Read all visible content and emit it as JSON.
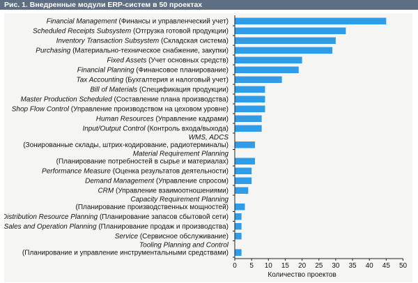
{
  "figure": {
    "title": "Рис. 1. Внедренные модули ERP-систем в 50 проектах"
  },
  "colors": {
    "title_bar": "#5e6e83",
    "bar": "#2f9ce8",
    "plot_background": "#f5f6f3"
  },
  "chart_data": {
    "type": "bar",
    "orientation": "horizontal",
    "title": "Рис. 1. Внедренные модули ERP-систем в 50 проектах",
    "xlabel": "Количество проектов",
    "ylabel": "",
    "xlim": [
      0,
      50
    ],
    "xticks": [
      0,
      5,
      10,
      15,
      20,
      25,
      30,
      35,
      40,
      45,
      50
    ],
    "grid": false,
    "legend": "none",
    "categories": [
      {
        "en": "Financial Management",
        "ru": "(Финансы и управленческий учет)",
        "value": 45
      },
      {
        "en": "Scheduled Receipts Subsystem",
        "ru": "(Отгрузка готовой продукции)",
        "value": 33
      },
      {
        "en": "Inventory Transaction Subsystem",
        "ru": "(Складская система)",
        "value": 30
      },
      {
        "en": "Purchasing",
        "ru": "(Материально-техническое снабжение, закупки)",
        "value": 29
      },
      {
        "en": "Fixed Assets",
        "ru": "(Учет основных средств)",
        "value": 20
      },
      {
        "en": "Financial Planning",
        "ru": "(Финансовое планирование)",
        "value": 19
      },
      {
        "en": "Tax Accounting",
        "ru": "(Бухгалтерия и налоговый учет)",
        "value": 14
      },
      {
        "en": "Bill of Materials",
        "ru": "(Спецификация продукции)",
        "value": 9
      },
      {
        "en": "Master Production Scheduled",
        "ru": "(Составление плана производства)",
        "value": 9
      },
      {
        "en": "Shop Flow Control",
        "ru": "(Управление производством на цеховом уровне)",
        "value": 9
      },
      {
        "en": "Human Resources",
        "ru": "(Управление кадрами)",
        "value": 8
      },
      {
        "en": "Input/Output Control",
        "ru": "(Контроль входа/выхода)",
        "value": 8
      },
      {
        "en": "WMS, ADCS",
        "ru": "(Зонированные склады, штрих-кодирование, радиотерминалы)",
        "value": 6,
        "wrap": true
      },
      {
        "en": "Material Requirement Planning",
        "ru": "(Планирование потребностей в сырье и материалах)",
        "value": 6,
        "wrap": true
      },
      {
        "en": "Performance Measure",
        "ru": "(Оценка результатов деятельности)",
        "value": 5
      },
      {
        "en": "Demand Management",
        "ru": "(Управление спросом)",
        "value": 5
      },
      {
        "en": "CRM",
        "ru": "(Управление взаимоотношениями)",
        "value": 4
      },
      {
        "en": "Capacity Requirement Planning",
        "ru": "(Планирование производственных мощностей)",
        "value": 3,
        "wrap": true
      },
      {
        "en": "Distribution Resource Planning",
        "ru": "(Планирование запасов сбытовой сети)",
        "value": 2
      },
      {
        "en": "Sales and Operation Planning",
        "ru": "(Планирование продаж и производства)",
        "value": 2
      },
      {
        "en": "Service",
        "ru": "(Сервисное обслуживание)",
        "value": 2
      },
      {
        "en": "Tooling Planning and Control",
        "ru": "(Планирование и управление инструментальными средствами)",
        "value": 2,
        "wrap": true
      }
    ]
  }
}
